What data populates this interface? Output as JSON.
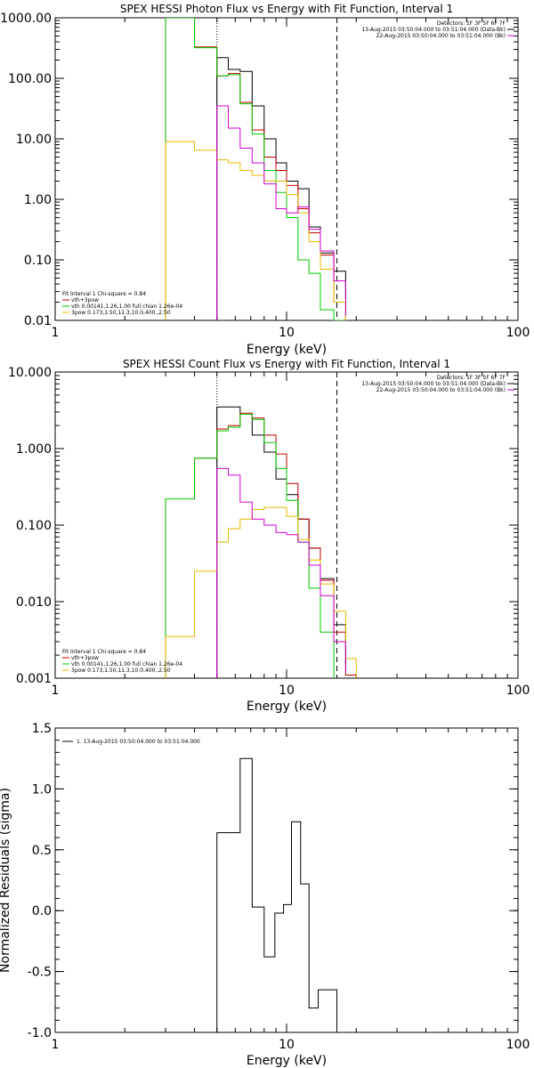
{
  "chart_data": [
    {
      "type": "line",
      "title": "SPEX HESSI Photon Flux vs Energy with Fit Function, Interval 1",
      "xlabel": "Energy (keV)",
      "ylabel": "",
      "xscale": "log",
      "yscale": "log",
      "xlim": [
        1,
        100
      ],
      "ylim": [
        0.01,
        1000
      ],
      "xticks": [
        1,
        10,
        100
      ],
      "xtick_labels": [
        "1",
        "10",
        "100"
      ],
      "yticks": [
        0.01,
        0.1,
        1,
        10,
        100,
        1000
      ],
      "ytick_labels": [
        "0.01",
        "0.10",
        "1.00",
        "10.00",
        "100.00",
        "1000.00"
      ],
      "vlines": [
        {
          "x": 5.0,
          "style": "dotted"
        },
        {
          "x": 16.5,
          "style": "dashed"
        }
      ],
      "legend_top_right": [
        {
          "text": "Detectors: 1F 3F 5F 6F 7F",
          "color": ""
        },
        {
          "text": "13-Aug-2015 03:50:04.000 to 03:51:04.000 (Data-Bk)",
          "color": "#000000"
        },
        {
          "text": "22-Aug-2015 03:50:04.000 to 03:51:04.000 (Bk)",
          "color": "#d000d0"
        }
      ],
      "legend_bottom_left": [
        {
          "text": "Fit Interval  1    Chi-square = 0.84",
          "color": ""
        },
        {
          "text": "vth+3pow",
          "color": "#c00000"
        },
        {
          "text": "vth 0.00141,1.26,1.00  full chian 1.26e-04",
          "color": "#00cc00"
        },
        {
          "text": "3pow 0.173,1.50,11.3,10.0,400.,2.50",
          "color": "#e8b800"
        }
      ],
      "series": [
        {
          "name": "Data-Bk",
          "color": "#000000",
          "edges": [
            5,
            5.6,
            6.3,
            7.1,
            8,
            9,
            10,
            11.2,
            12.5,
            14,
            16,
            18
          ],
          "values": [
            220,
            140,
            130,
            35,
            10,
            4,
            2,
            1.5,
            0.35,
            0.13,
            0.065,
            0.022
          ]
        },
        {
          "name": "vth+3pow",
          "color": "#c00000",
          "edges": [
            3,
            4,
            5,
            5.6,
            6.3,
            7.1,
            8,
            9,
            10,
            11.2,
            12.5,
            14,
            16,
            18
          ],
          "values": [
            1000,
            330,
            110,
            120,
            40,
            14,
            5,
            3,
            1.7,
            0.7,
            0.28,
            0.12,
            0.02
          ]
        },
        {
          "name": "vth",
          "color": "#00cc00",
          "edges": [
            3,
            4,
            5,
            5.6,
            6.3,
            7.1,
            8,
            9,
            10,
            11.2,
            12.5,
            14,
            16,
            18
          ],
          "values": [
            1000,
            320,
            110,
            115,
            38,
            12,
            3,
            1.3,
            0.5,
            0.1,
            0.06,
            0.015,
            0.01
          ]
        },
        {
          "name": "3pow",
          "color": "#e8b800",
          "edges": [
            3,
            4,
            5,
            5.6,
            6.3,
            7.1,
            8,
            9,
            10,
            11.2,
            12.5,
            14,
            16,
            18
          ],
          "values": [
            9,
            6.5,
            4.5,
            4,
            3,
            2.5,
            2,
            2,
            1.2,
            0.6,
            0.2,
            0.07,
            0.02
          ]
        },
        {
          "name": "Bk",
          "color": "#d000d0",
          "edges": [
            5,
            5.6,
            6.3,
            7.1,
            8,
            9,
            10,
            11.2,
            12.5,
            14,
            16,
            18
          ],
          "values": [
            35,
            15,
            7,
            4,
            1.8,
            0.7,
            0.6,
            0.75,
            0.32,
            0.14,
            0.045,
            0.012
          ]
        }
      ]
    },
    {
      "type": "line",
      "title": "SPEX HESSI Count Flux vs Energy with Fit Function, Interval 1",
      "xlabel": "Energy (keV)",
      "ylabel": "",
      "xscale": "log",
      "yscale": "log",
      "xlim": [
        1,
        100
      ],
      "ylim": [
        0.001,
        10
      ],
      "xticks": [
        1,
        10,
        100
      ],
      "xtick_labels": [
        "1",
        "10",
        "100"
      ],
      "yticks": [
        0.001,
        0.01,
        0.1,
        1,
        10
      ],
      "ytick_labels": [
        "0.001",
        "0.010",
        "0.100",
        "1.000",
        "10.000"
      ],
      "vlines": [
        {
          "x": 5.0,
          "style": "dotted"
        },
        {
          "x": 16.5,
          "style": "dashed"
        }
      ],
      "legend_top_right": [
        {
          "text": "Detectors: 1F 3F 5F 6F 7F",
          "color": ""
        },
        {
          "text": "13-Aug-2015 03:50:04.000 to 03:51:04.000 (Data-Bk)",
          "color": "#000000"
        },
        {
          "text": "22-Aug-2015 03:50:04.000 to 03:51:04.000 (Bk)",
          "color": "#d000d0"
        }
      ],
      "legend_bottom_left": [
        {
          "text": "Fit Interval  1    Chi-square = 0.84",
          "color": ""
        },
        {
          "text": "vth+3pow",
          "color": "#c00000"
        },
        {
          "text": "vth 0.00141,1.26,1.00  full chian 1.26e-04",
          "color": "#00cc00"
        },
        {
          "text": "3pow 0.173,1.50,11.3,10.0,400.,2.50",
          "color": "#e8b800"
        }
      ],
      "series": [
        {
          "name": "Data-Bk",
          "color": "#000000",
          "edges": [
            5,
            5.6,
            6.3,
            7.1,
            8,
            9,
            10,
            11.2,
            12.5,
            14,
            16,
            18
          ],
          "values": [
            3.5,
            3.5,
            2.8,
            1.5,
            0.9,
            0.4,
            0.25,
            0.12,
            0.05,
            0.02,
            0.005,
            0.0015
          ]
        },
        {
          "name": "vth+3pow",
          "color": "#c00000",
          "edges": [
            3,
            4,
            5,
            5.6,
            6.3,
            7.1,
            8,
            9,
            10,
            11.2,
            12.5,
            14,
            16,
            18,
            20
          ],
          "values": [
            0.22,
            0.75,
            1.8,
            2.0,
            2.9,
            2.5,
            1.5,
            0.85,
            0.35,
            0.12,
            0.05,
            0.019,
            0.004,
            0.0011
          ]
        },
        {
          "name": "vth",
          "color": "#00cc00",
          "edges": [
            3,
            4,
            5,
            5.6,
            6.3,
            7.1,
            8,
            9,
            10,
            11.2,
            12.5,
            14,
            16
          ],
          "values": [
            0.22,
            0.75,
            1.7,
            1.9,
            2.8,
            2.4,
            1.2,
            0.55,
            0.21,
            0.06,
            0.015,
            0.004
          ]
        },
        {
          "name": "3pow",
          "color": "#e8b800",
          "edges": [
            3,
            4,
            5,
            5.6,
            6.3,
            7.1,
            8,
            9,
            10,
            11.2,
            12.5,
            14,
            16,
            18,
            20
          ],
          "values": [
            0.0035,
            0.025,
            0.06,
            0.09,
            0.12,
            0.16,
            0.17,
            0.17,
            0.13,
            0.065,
            0.035,
            0.017,
            0.0075,
            0.0018
          ]
        },
        {
          "name": "Bk",
          "color": "#d000d0",
          "edges": [
            5,
            5.6,
            6.3,
            7.1,
            8,
            9,
            10,
            11.2,
            12.5,
            14,
            16,
            18
          ],
          "values": [
            0.55,
            0.45,
            0.2,
            0.12,
            0.1,
            0.08,
            0.075,
            0.06,
            0.03,
            0.012,
            0.003,
            0.0012
          ]
        }
      ]
    },
    {
      "type": "line",
      "title": "",
      "xlabel": "Energy (keV)",
      "ylabel": "Normalized Residuals (sigma)",
      "xscale": "log",
      "yscale": "linear",
      "xlim": [
        1,
        100
      ],
      "ylim": [
        -1.0,
        1.5
      ],
      "xticks": [
        1,
        10,
        100
      ],
      "xtick_labels": [
        "1",
        "10",
        "100"
      ],
      "yticks": [
        -1.0,
        -0.5,
        0.0,
        0.5,
        1.0,
        1.5
      ],
      "ytick_labels": [
        "-1.0",
        "-0.5",
        "0.0",
        "0.5",
        "1.0",
        "1.5"
      ],
      "vlines": [],
      "legend_top_left": [
        {
          "text": "1. 13-Aug-2015 03:50:04.000 to 03:51:04.000",
          "color": "#000000"
        }
      ],
      "series": [
        {
          "name": "1. 13-Aug-2015 03:50:04.000 to 03:51:04.000",
          "color": "#000000",
          "edges": [
            5,
            5.6,
            6.3,
            7.1,
            8,
            8.9,
            9.7,
            10.5,
            11.5,
            12.5,
            13.7,
            15,
            16.5
          ],
          "values": [
            0.64,
            0.64,
            1.25,
            0.03,
            -0.38,
            -0.02,
            0.05,
            0.73,
            0.22,
            -0.8,
            -0.65,
            -0.65
          ]
        }
      ]
    }
  ]
}
